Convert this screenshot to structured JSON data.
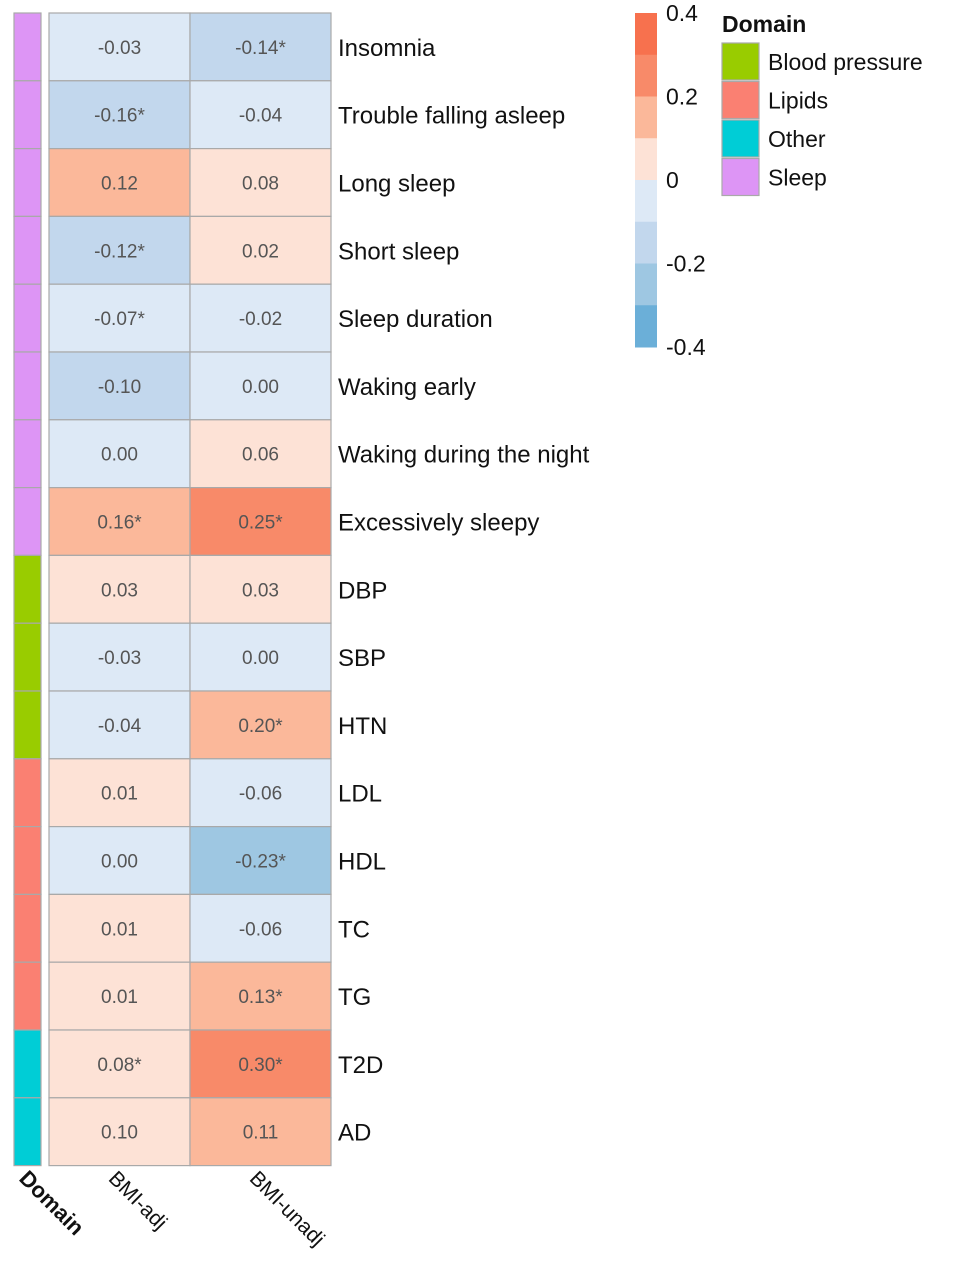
{
  "chart_data": {
    "type": "heatmap",
    "title": "",
    "columns": [
      "BMI-adj",
      "BMI-unadj"
    ],
    "domain_axis_label": "Domain",
    "rows": [
      {
        "label": "Insomnia",
        "domain": "Sleep",
        "values": [
          -0.03,
          -0.14
        ],
        "text": [
          "-0.03",
          "-0.14*"
        ]
      },
      {
        "label": "Trouble falling asleep",
        "domain": "Sleep",
        "values": [
          -0.16,
          -0.04
        ],
        "text": [
          "-0.16*",
          "-0.04"
        ]
      },
      {
        "label": "Long sleep",
        "domain": "Sleep",
        "values": [
          0.12,
          0.08
        ],
        "text": [
          "0.12",
          "0.08"
        ]
      },
      {
        "label": "Short sleep",
        "domain": "Sleep",
        "values": [
          -0.12,
          0.02
        ],
        "text": [
          "-0.12*",
          "0.02"
        ]
      },
      {
        "label": "Sleep duration",
        "domain": "Sleep",
        "values": [
          -0.07,
          -0.02
        ],
        "text": [
          "-0.07*",
          "-0.02"
        ]
      },
      {
        "label": "Waking early",
        "domain": "Sleep",
        "values": [
          -0.1,
          0.0
        ],
        "text": [
          "-0.10",
          "0.00"
        ]
      },
      {
        "label": "Waking during the night",
        "domain": "Sleep",
        "values": [
          0.0,
          0.06
        ],
        "text": [
          "0.00",
          "0.06"
        ]
      },
      {
        "label": "Excessively sleepy",
        "domain": "Sleep",
        "values": [
          0.16,
          0.25
        ],
        "text": [
          "0.16*",
          "0.25*"
        ]
      },
      {
        "label": "DBP",
        "domain": "Blood pressure",
        "values": [
          0.03,
          0.03
        ],
        "text": [
          "0.03",
          "0.03"
        ]
      },
      {
        "label": "SBP",
        "domain": "Blood pressure",
        "values": [
          -0.03,
          0.0
        ],
        "text": [
          "-0.03",
          "0.00"
        ]
      },
      {
        "label": "HTN",
        "domain": "Blood pressure",
        "values": [
          -0.04,
          0.2
        ],
        "text": [
          "-0.04",
          "0.20*"
        ]
      },
      {
        "label": "LDL",
        "domain": "Lipids",
        "values": [
          0.01,
          -0.06
        ],
        "text": [
          "0.01",
          "-0.06"
        ]
      },
      {
        "label": "HDL",
        "domain": "Lipids",
        "values": [
          0.0,
          -0.23
        ],
        "text": [
          "0.00",
          "-0.23*"
        ]
      },
      {
        "label": "TC",
        "domain": "Lipids",
        "values": [
          0.01,
          -0.06
        ],
        "text": [
          "0.01",
          "-0.06"
        ]
      },
      {
        "label": "TG",
        "domain": "Lipids",
        "values": [
          0.01,
          0.13
        ],
        "text": [
          "0.01",
          "0.13*"
        ]
      },
      {
        "label": "T2D",
        "domain": "Other",
        "values": [
          0.08,
          0.3
        ],
        "text": [
          "0.08*",
          "0.30*"
        ]
      },
      {
        "label": "AD",
        "domain": "Other",
        "values": [
          0.1,
          0.11
        ],
        "text": [
          "0.10",
          "0.11"
        ]
      }
    ],
    "color_scale": {
      "ticks": [
        "0.4",
        "0.2",
        "0",
        "-0.2",
        "-0.4"
      ],
      "tick_values": [
        0.4,
        0.2,
        0,
        -0.2,
        -0.4
      ],
      "range": [
        -0.4,
        0.4
      ],
      "bins": [
        {
          "from": 0.3,
          "to": 0.4,
          "color": "#f7714e"
        },
        {
          "from": 0.2,
          "to": 0.3,
          "color": "#f88a69"
        },
        {
          "from": 0.1,
          "to": 0.2,
          "color": "#fbb89a"
        },
        {
          "from": 0.0,
          "to": 0.1,
          "color": "#fde2d6"
        },
        {
          "from": -0.1,
          "to": 0.0,
          "color": "#dde9f6"
        },
        {
          "from": -0.2,
          "to": -0.1,
          "color": "#c2d7ed"
        },
        {
          "from": -0.3,
          "to": -0.2,
          "color": "#9ec7e2"
        },
        {
          "from": -0.4,
          "to": -0.3,
          "color": "#6bafd8"
        }
      ]
    },
    "domain_legend": {
      "title": "Domain",
      "items": [
        {
          "name": "Blood pressure",
          "color": "#99cc00"
        },
        {
          "name": "Lipids",
          "color": "#fa8072"
        },
        {
          "name": "Other",
          "color": "#00cdd6"
        },
        {
          "name": "Sleep",
          "color": "#dd95f5"
        }
      ]
    },
    "legend_placement": "top-right",
    "grid": true
  }
}
